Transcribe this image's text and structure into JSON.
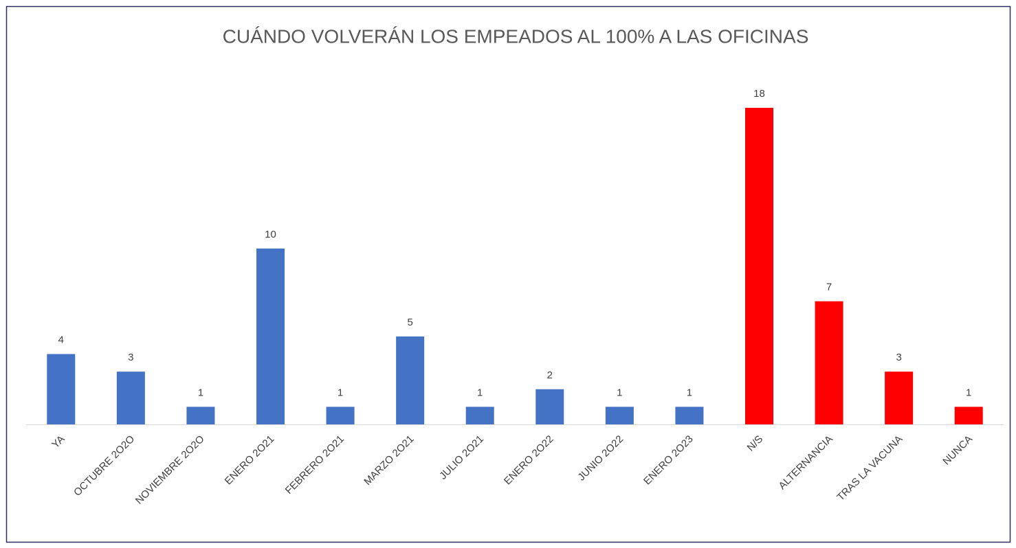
{
  "chart_data": {
    "type": "bar",
    "title": "CUÁNDO VOLVERÁN LOS EMPEADOS AL 100% A LAS OFICINAS",
    "categories": [
      "YA",
      "OCTUBRE 2O2O",
      "NOVIEMBRE 2O2O",
      "ENERO 2O21",
      "FEBRERO 2O21",
      "MARZO 2O21",
      "JULIO 2O21",
      "ENERO 2O22",
      "JUNIO 2O22",
      "ENERO 2O23",
      "N/S",
      "ALTERNANCIA",
      "TRAS LA VACUNA",
      "NUNCA"
    ],
    "values": [
      4,
      3,
      1,
      10,
      1,
      5,
      1,
      2,
      1,
      1,
      18,
      7,
      3,
      1
    ],
    "colors": [
      "#4472c4",
      "#4472c4",
      "#4472c4",
      "#4472c4",
      "#4472c4",
      "#4472c4",
      "#4472c4",
      "#4472c4",
      "#4472c4",
      "#4472c4",
      "#ff0000",
      "#ff0000",
      "#ff0000",
      "#ff0000"
    ]
  }
}
